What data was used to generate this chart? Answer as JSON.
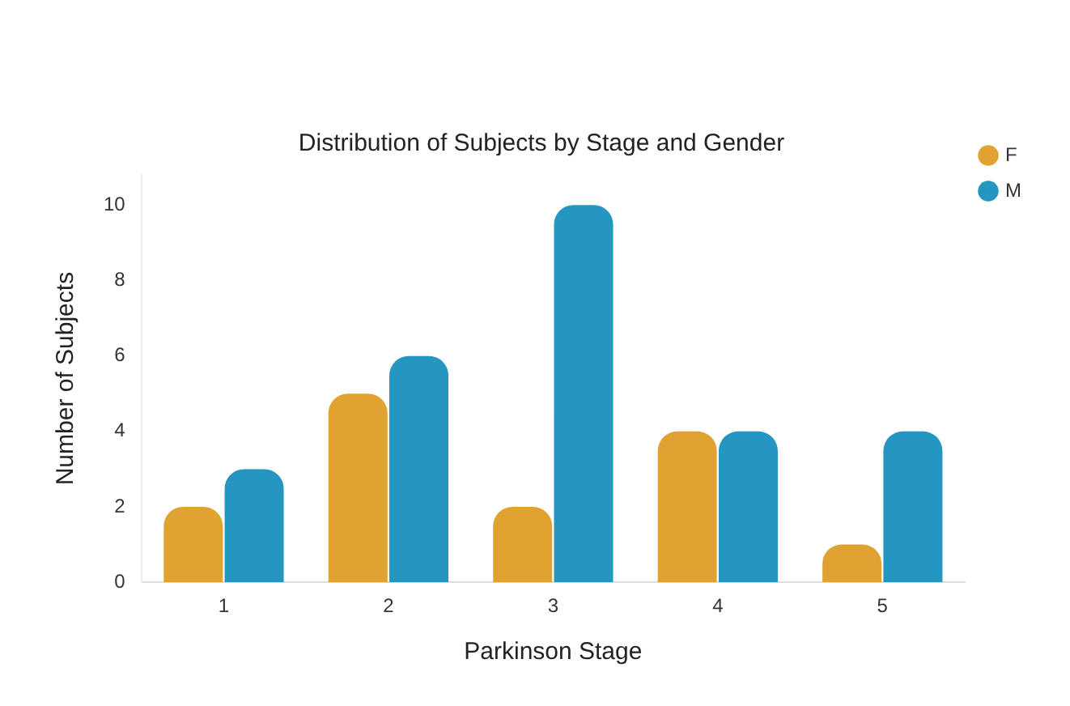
{
  "chart_data": {
    "type": "bar",
    "title": "Distribution of Subjects by Stage and Gender",
    "xlabel": "Parkinson Stage",
    "ylabel": "Number of Subjects",
    "categories": [
      "1",
      "2",
      "3",
      "4",
      "5"
    ],
    "series": [
      {
        "name": "F",
        "color": "#e0a332",
        "values": [
          2,
          5,
          2,
          4,
          1
        ]
      },
      {
        "name": "M",
        "color": "#2596bf",
        "values": [
          3,
          6,
          10,
          4,
          4
        ]
      }
    ],
    "ylim": [
      0,
      10.8
    ],
    "yticks": [
      0,
      2,
      4,
      6,
      8,
      10
    ],
    "grid": false,
    "legend": "top right"
  }
}
